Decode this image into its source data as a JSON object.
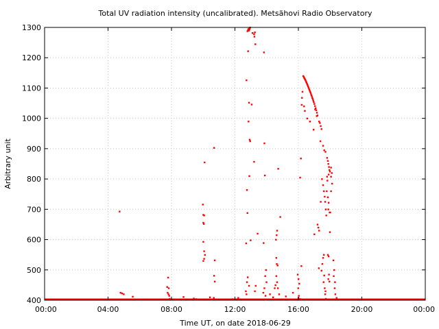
{
  "chart_data": {
    "type": "scatter",
    "title": "Total UV radiation intensity (uncalibrated). Metsähovi Radio Observatory",
    "xlabel": "Time UT, on date 2018-06-29",
    "ylabel": "Arbitrary unit",
    "xlim": [
      0,
      24
    ],
    "ylim": [
      400,
      1300
    ],
    "x_ticks": [
      0,
      4,
      8,
      12,
      16,
      20,
      24
    ],
    "x_tick_labels": [
      "00:00",
      "04:00",
      "08:00",
      "12:00",
      "16:00",
      "20:00",
      "00:00"
    ],
    "y_ticks": [
      400,
      500,
      600,
      700,
      800,
      900,
      1000,
      1100,
      1200,
      1300
    ],
    "grid": true,
    "marker_color": "#ff0000",
    "baseline": {
      "y": 400,
      "x_start": 0,
      "x_end": 24
    },
    "points": [
      [
        4.72,
        693
      ],
      [
        4.78,
        425
      ],
      [
        4.88,
        423
      ],
      [
        4.98,
        420
      ],
      [
        5.55,
        412
      ],
      [
        5.58,
        402
      ],
      [
        7.78,
        475
      ],
      [
        7.72,
        444
      ],
      [
        7.82,
        440
      ],
      [
        7.75,
        425
      ],
      [
        7.8,
        420
      ],
      [
        7.85,
        415
      ],
      [
        7.88,
        405
      ],
      [
        8.05,
        402
      ],
      [
        8.75,
        411
      ],
      [
        9.4,
        406
      ],
      [
        9.55,
        404
      ],
      [
        9.97,
        716
      ],
      [
        10.0,
        682
      ],
      [
        10.05,
        680
      ],
      [
        10.0,
        656
      ],
      [
        10.03,
        652
      ],
      [
        10.0,
        593
      ],
      [
        10.05,
        562
      ],
      [
        10.1,
        550
      ],
      [
        10.05,
        537
      ],
      [
        10.0,
        530
      ],
      [
        10.08,
        855
      ],
      [
        10.2,
        402
      ],
      [
        10.42,
        410
      ],
      [
        10.68,
        903
      ],
      [
        10.72,
        532
      ],
      [
        10.68,
        481
      ],
      [
        10.72,
        462
      ],
      [
        10.66,
        408
      ],
      [
        10.8,
        403
      ],
      [
        11.5,
        403
      ],
      [
        11.85,
        404
      ],
      [
        12.2,
        408
      ],
      [
        12.72,
        1126
      ],
      [
        12.75,
        764
      ],
      [
        12.78,
        688
      ],
      [
        12.7,
        588
      ],
      [
        12.8,
        476
      ],
      [
        12.75,
        460
      ],
      [
        12.68,
        430
      ],
      [
        12.72,
        420
      ],
      [
        12.78,
        1288
      ],
      [
        12.82,
        1292
      ],
      [
        12.85,
        1295
      ],
      [
        12.9,
        1298
      ],
      [
        12.95,
        1300
      ],
      [
        12.92,
        1295
      ],
      [
        12.88,
        1290
      ],
      [
        12.82,
        1222
      ],
      [
        12.88,
        1052
      ],
      [
        12.85,
        990
      ],
      [
        12.92,
        930
      ],
      [
        12.95,
        925
      ],
      [
        12.9,
        810
      ],
      [
        12.98,
        598
      ],
      [
        12.88,
        448
      ],
      [
        13.1,
        1282
      ],
      [
        13.2,
        1278
      ],
      [
        13.25,
        1284
      ],
      [
        13.22,
        1270
      ],
      [
        13.28,
        1245
      ],
      [
        13.05,
        1046
      ],
      [
        13.2,
        857
      ],
      [
        13.42,
        620
      ],
      [
        13.3,
        448
      ],
      [
        13.25,
        430
      ],
      [
        13.82,
        1218
      ],
      [
        13.85,
        918
      ],
      [
        13.88,
        812
      ],
      [
        13.8,
        589
      ],
      [
        13.95,
        500
      ],
      [
        13.9,
        480
      ],
      [
        13.98,
        460
      ],
      [
        13.85,
        440
      ],
      [
        13.78,
        425
      ],
      [
        13.92,
        415
      ],
      [
        14.2,
        420
      ],
      [
        14.4,
        410
      ],
      [
        14.5,
        440
      ],
      [
        14.55,
        450
      ],
      [
        14.58,
        600
      ],
      [
        14.62,
        615
      ],
      [
        14.65,
        630
      ],
      [
        14.6,
        540
      ],
      [
        14.63,
        520
      ],
      [
        14.68,
        515
      ],
      [
        14.6,
        480
      ],
      [
        14.65,
        460
      ],
      [
        14.7,
        440
      ],
      [
        14.72,
        834
      ],
      [
        14.85,
        675
      ],
      [
        14.78,
        420
      ],
      [
        15.2,
        413
      ],
      [
        15.65,
        425
      ],
      [
        15.95,
        485
      ],
      [
        16.0,
        470
      ],
      [
        15.98,
        440
      ],
      [
        16.05,
        455
      ],
      [
        16.02,
        415
      ],
      [
        16.0,
        408
      ],
      [
        16.1,
        805
      ],
      [
        16.15,
        868
      ],
      [
        16.2,
        1045
      ],
      [
        16.22,
        1068
      ],
      [
        16.25,
        1088
      ],
      [
        16.18,
        513
      ],
      [
        16.12,
        404
      ],
      [
        16.3,
        1140
      ],
      [
        16.33,
        1137
      ],
      [
        16.36,
        1134
      ],
      [
        16.39,
        1131
      ],
      [
        16.42,
        1128
      ],
      [
        16.45,
        1125
      ],
      [
        16.48,
        1121
      ],
      [
        16.51,
        1118
      ],
      [
        16.54,
        1114
      ],
      [
        16.57,
        1110
      ],
      [
        16.6,
        1106
      ],
      [
        16.63,
        1102
      ],
      [
        16.66,
        1098
      ],
      [
        16.69,
        1094
      ],
      [
        16.72,
        1090
      ],
      [
        16.75,
        1086
      ],
      [
        16.78,
        1082
      ],
      [
        16.81,
        1077
      ],
      [
        16.84,
        1073
      ],
      [
        16.87,
        1068
      ],
      [
        16.9,
        1064
      ],
      [
        16.93,
        1059
      ],
      [
        16.96,
        1054
      ],
      [
        17.0,
        1048
      ],
      [
        17.04,
        1041
      ],
      [
        17.08,
        1034
      ],
      [
        17.12,
        1027
      ],
      [
        17.16,
        1019
      ],
      [
        17.2,
        1010
      ],
      [
        16.35,
        1040
      ],
      [
        16.4,
        1025
      ],
      [
        16.55,
        1000
      ],
      [
        16.72,
        990
      ],
      [
        16.95,
        963
      ],
      [
        17.05,
        1030
      ],
      [
        17.15,
        1008
      ],
      [
        17.3,
        990
      ],
      [
        17.35,
        985
      ],
      [
        17.4,
        975
      ],
      [
        17.45,
        965
      ],
      [
        17.38,
        925
      ],
      [
        17.55,
        910
      ],
      [
        17.62,
        895
      ],
      [
        17.7,
        890
      ],
      [
        17.0,
        618
      ],
      [
        17.2,
        650
      ],
      [
        17.25,
        640
      ],
      [
        17.3,
        630
      ],
      [
        17.28,
        506
      ],
      [
        17.4,
        725
      ],
      [
        17.48,
        800
      ],
      [
        17.55,
        780
      ],
      [
        17.6,
        760
      ],
      [
        17.65,
        742
      ],
      [
        17.68,
        725
      ],
      [
        17.72,
        700
      ],
      [
        17.75,
        680
      ],
      [
        17.8,
        870
      ],
      [
        17.85,
        860
      ],
      [
        17.88,
        850
      ],
      [
        17.92,
        840
      ],
      [
        17.95,
        830
      ],
      [
        17.98,
        825
      ],
      [
        17.9,
        815
      ],
      [
        17.8,
        808
      ],
      [
        17.82,
        795
      ],
      [
        17.78,
        760
      ],
      [
        17.85,
        740
      ],
      [
        17.9,
        722
      ],
      [
        17.88,
        700
      ],
      [
        17.96,
        690
      ],
      [
        17.98,
        625
      ],
      [
        17.6,
        550
      ],
      [
        17.55,
        540
      ],
      [
        17.5,
        520
      ],
      [
        17.45,
        498
      ],
      [
        17.62,
        482
      ],
      [
        17.58,
        460
      ],
      [
        17.65,
        440
      ],
      [
        17.7,
        430
      ],
      [
        17.68,
        420
      ],
      [
        17.72,
        405
      ],
      [
        17.85,
        550
      ],
      [
        17.9,
        545
      ],
      [
        17.92,
        485
      ],
      [
        17.88,
        470
      ],
      [
        17.95,
        462
      ],
      [
        18.05,
        838
      ],
      [
        18.1,
        820
      ],
      [
        18.05,
        808
      ],
      [
        18.12,
        785
      ],
      [
        18.05,
        760
      ],
      [
        18.0,
        690
      ],
      [
        18.2,
        532
      ],
      [
        18.25,
        500
      ],
      [
        18.22,
        480
      ],
      [
        18.3,
        460
      ],
      [
        18.28,
        440
      ],
      [
        18.32,
        420
      ],
      [
        18.4,
        408
      ],
      [
        18.52,
        403
      ],
      [
        18.3,
        402
      ]
    ]
  }
}
